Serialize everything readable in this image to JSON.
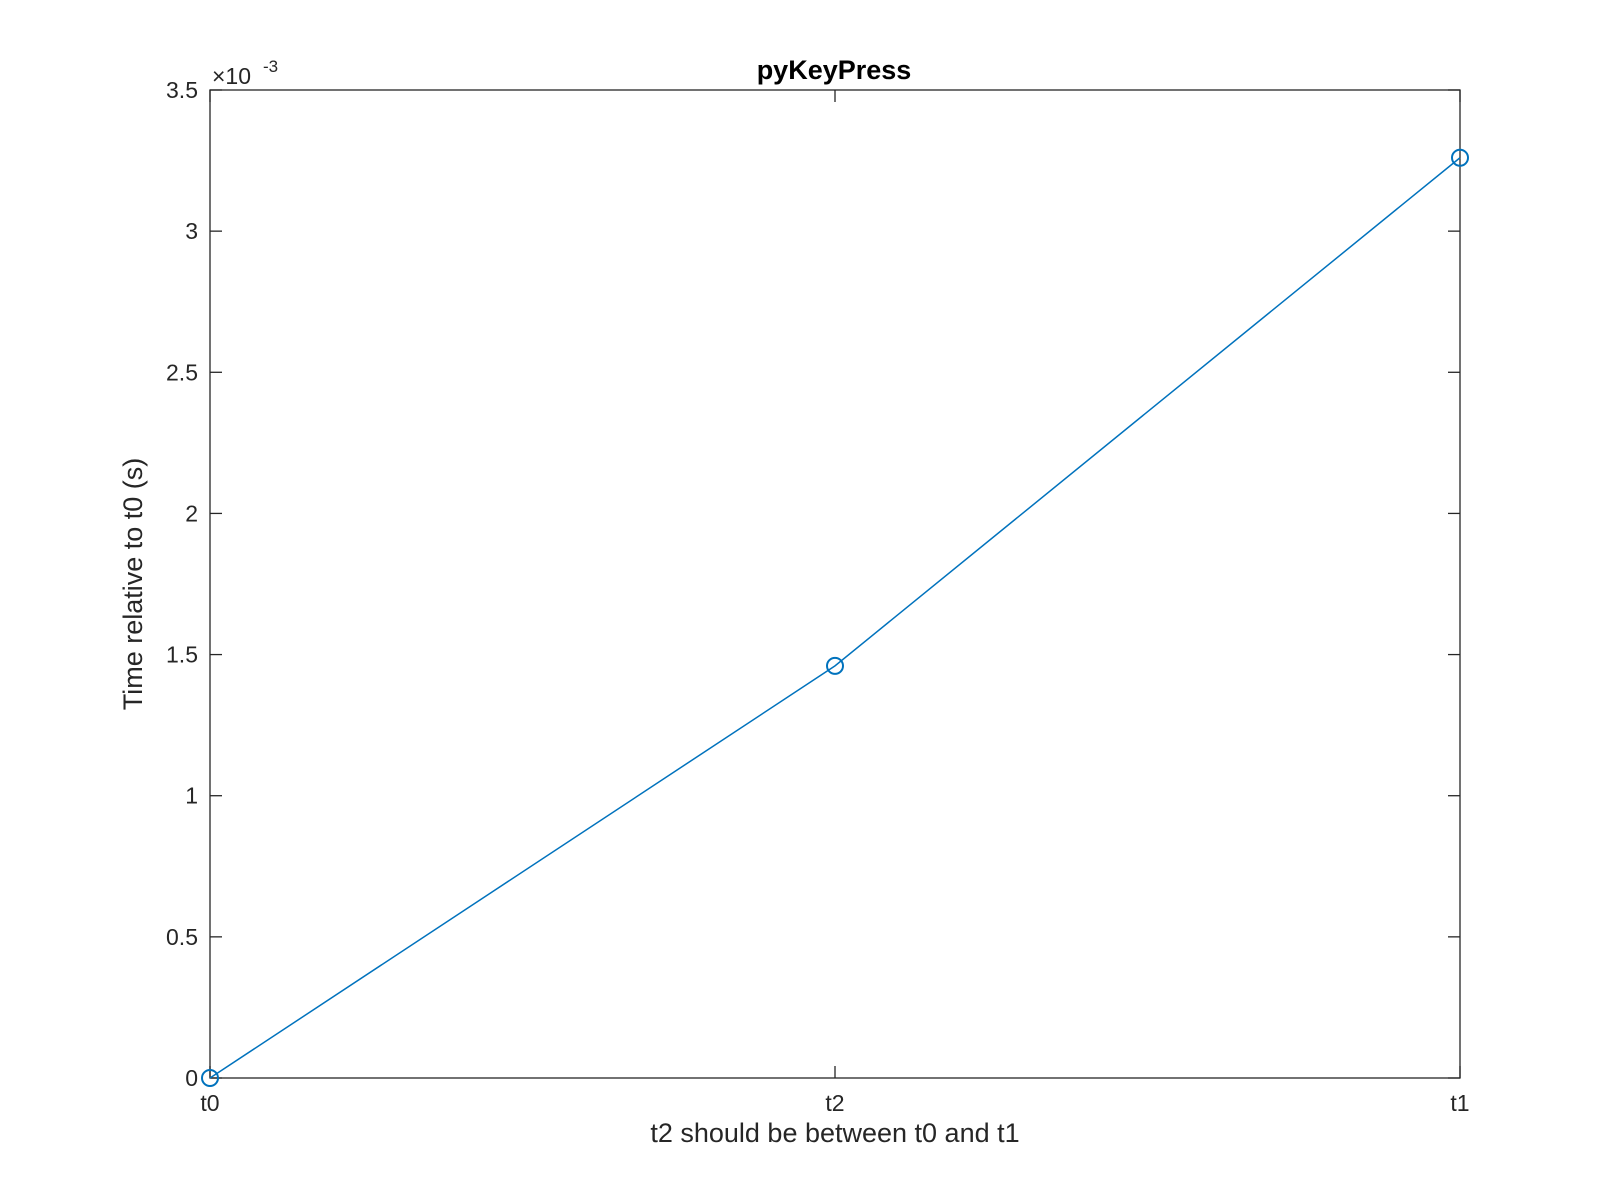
{
  "chart_data": {
    "type": "line",
    "title": "pyKeyPress",
    "xlabel": "t2 should be between t0 and t1",
    "ylabel": "Time relative to t0 (s)",
    "categories": [
      "t0",
      "t2",
      "t1"
    ],
    "series": [
      {
        "values": [
          0,
          0.00146,
          0.00326
        ],
        "color": "#0072BD",
        "marker": "circle"
      }
    ],
    "ylim": [
      0,
      0.0035
    ],
    "y_ticks": [
      0,
      0.0005,
      0.001,
      0.0015,
      0.002,
      0.0025,
      0.003,
      0.0035
    ],
    "y_tick_labels": [
      "0",
      "0.5",
      "1",
      "1.5",
      "2",
      "2.5",
      "3",
      "3.5"
    ],
    "y_exponent_base": "×10",
    "y_exponent_power": "-3",
    "grid": false,
    "legend": "none"
  }
}
